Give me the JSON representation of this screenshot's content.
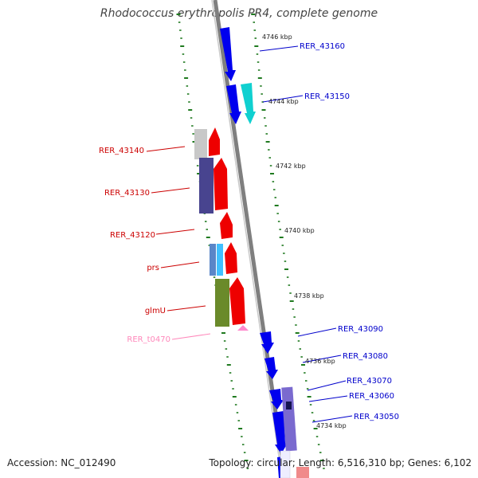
{
  "title": "Rhodococcus erythropolis PR4, complete genome",
  "footer": {
    "accession": "Accession: NC_012490",
    "summary": "Topology: circular; Length: 6,516,310 bp; Genes: 6,102"
  },
  "colors": {
    "backbone": "#7f7f7f",
    "tick": "#1f7a1f",
    "forward_label": "#0000cc",
    "reverse_label": "#cc0000",
    "rna_label": "#ff88bb"
  },
  "scale_labels": [
    "4746 kbp",
    "4744 kbp",
    "4742 kbp",
    "4740 kbp",
    "4738 kbp",
    "4736 kbp",
    "4734 kbp"
  ],
  "gene_labels": {
    "right": [
      "RER_43160",
      "RER_43150",
      "RER_43090",
      "RER_43080",
      "RER_43070",
      "RER_43060",
      "RER_43050"
    ],
    "left": [
      "RER_43140",
      "RER_43130",
      "RER_43120",
      "prs",
      "glmU",
      "RER_t0470"
    ]
  }
}
